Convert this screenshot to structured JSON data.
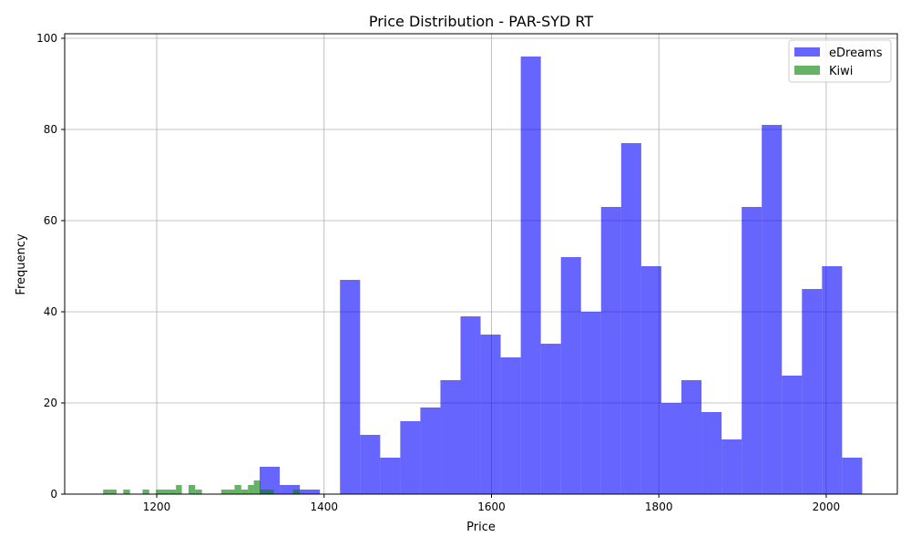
{
  "chart_data": {
    "type": "histogram",
    "title": "Price Distribution - PAR-SYD RT",
    "xlabel": "Price",
    "ylabel": "Frequency",
    "xlim": [
      1090,
      2085
    ],
    "ylim": [
      0,
      101
    ],
    "xticks": [
      1200,
      1400,
      1600,
      1800,
      2000
    ],
    "yticks": [
      0,
      20,
      40,
      60,
      80,
      100
    ],
    "grid": true,
    "legend_position": "top-right",
    "series": [
      {
        "name": "eDreams",
        "color": "#0000ff",
        "alpha": 0.6,
        "bin_width": 24,
        "bins": [
          [
            1323,
            1347,
            6
          ],
          [
            1347,
            1371,
            2
          ],
          [
            1371,
            1395,
            1
          ],
          [
            1395,
            1419,
            0
          ],
          [
            1419,
            1443,
            47
          ],
          [
            1443,
            1467,
            13
          ],
          [
            1467,
            1491,
            8
          ],
          [
            1491,
            1515,
            16
          ],
          [
            1515,
            1539,
            19
          ],
          [
            1539,
            1563,
            25
          ],
          [
            1563,
            1587,
            39
          ],
          [
            1587,
            1611,
            35
          ],
          [
            1611,
            1635,
            30
          ],
          [
            1635,
            1659,
            96
          ],
          [
            1659,
            1683,
            33
          ],
          [
            1683,
            1707,
            52
          ],
          [
            1707,
            1731,
            40
          ],
          [
            1731,
            1755,
            63
          ],
          [
            1755,
            1779,
            77
          ],
          [
            1779,
            1803,
            50
          ],
          [
            1803,
            1827,
            20
          ],
          [
            1827,
            1851,
            25
          ],
          [
            1851,
            1875,
            18
          ],
          [
            1875,
            1899,
            12
          ],
          [
            1899,
            1923,
            63
          ],
          [
            1923,
            1947,
            81
          ],
          [
            1947,
            1971,
            26
          ],
          [
            1971,
            1995,
            45
          ],
          [
            1995,
            2019,
            50
          ],
          [
            2019,
            2043,
            8
          ]
        ]
      },
      {
        "name": "Kiwi",
        "color": "#008000",
        "alpha": 0.6,
        "bin_width": 7.8,
        "bins": [
          [
            1136,
            1144,
            1
          ],
          [
            1144,
            1152,
            1
          ],
          [
            1160,
            1168,
            1
          ],
          [
            1183,
            1191,
            1
          ],
          [
            1199,
            1207,
            1
          ],
          [
            1207,
            1215,
            1
          ],
          [
            1215,
            1223,
            1
          ],
          [
            1223,
            1230,
            2
          ],
          [
            1238,
            1246,
            2
          ],
          [
            1246,
            1254,
            1
          ],
          [
            1277,
            1285,
            1
          ],
          [
            1285,
            1293,
            1
          ],
          [
            1293,
            1301,
            2
          ],
          [
            1301,
            1309,
            1
          ],
          [
            1309,
            1316,
            2
          ],
          [
            1316,
            1324,
            3
          ],
          [
            1324,
            1332,
            1
          ],
          [
            1332,
            1340,
            1
          ],
          [
            1363,
            1371,
            1
          ]
        ]
      }
    ]
  }
}
